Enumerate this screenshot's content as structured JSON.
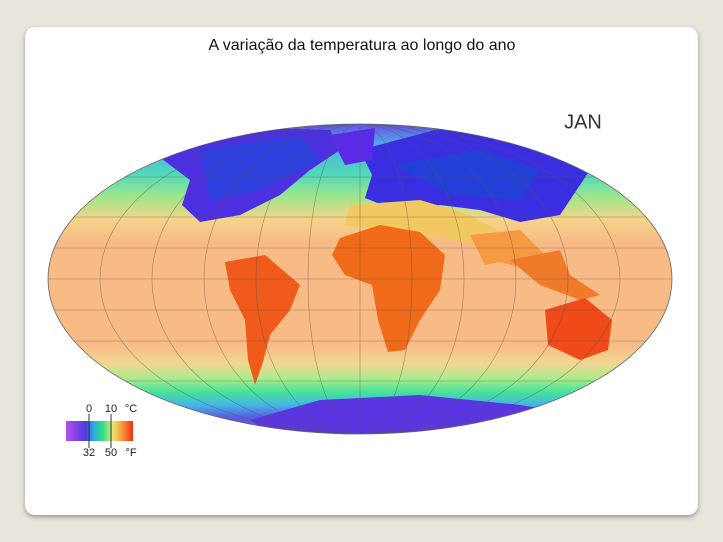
{
  "title": "A variação da temperatura ao longo do ano",
  "map": {
    "month": "JAN"
  },
  "legend": {
    "celsius": [
      0,
      10
    ],
    "celsius_unit": "°C",
    "fahrenheit": [
      32,
      50
    ],
    "fahrenheit_unit": "°F"
  }
}
